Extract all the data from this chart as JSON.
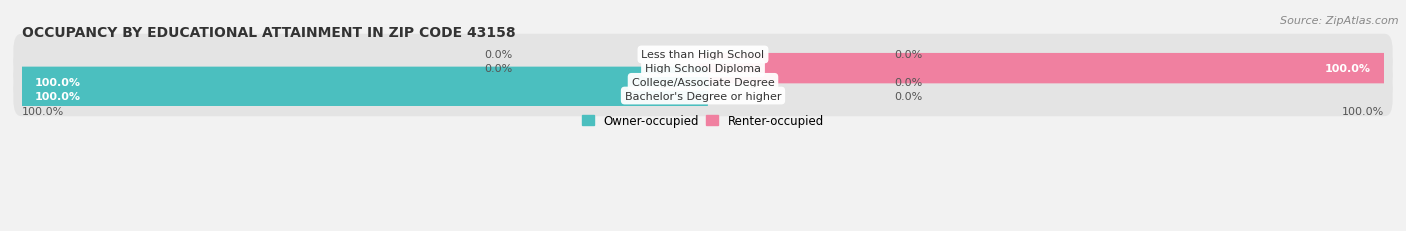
{
  "title": "OCCUPANCY BY EDUCATIONAL ATTAINMENT IN ZIP CODE 43158",
  "source": "Source: ZipAtlas.com",
  "categories": [
    "Less than High School",
    "High School Diploma",
    "College/Associate Degree",
    "Bachelor's Degree or higher"
  ],
  "owner_values": [
    0.0,
    0.0,
    100.0,
    100.0
  ],
  "renter_values": [
    0.0,
    100.0,
    0.0,
    0.0
  ],
  "owner_color": "#4BBFBF",
  "renter_color": "#F080A0",
  "bg_color": "#F2F2F2",
  "bar_bg_color": "#E4E4E4",
  "title_fontsize": 10,
  "source_fontsize": 8,
  "label_fontsize": 8,
  "bar_height": 0.62,
  "legend_owner": "Owner-occupied",
  "legend_renter": "Renter-occupied",
  "axis_left_label": "100.0%",
  "axis_right_label": "100.0%"
}
